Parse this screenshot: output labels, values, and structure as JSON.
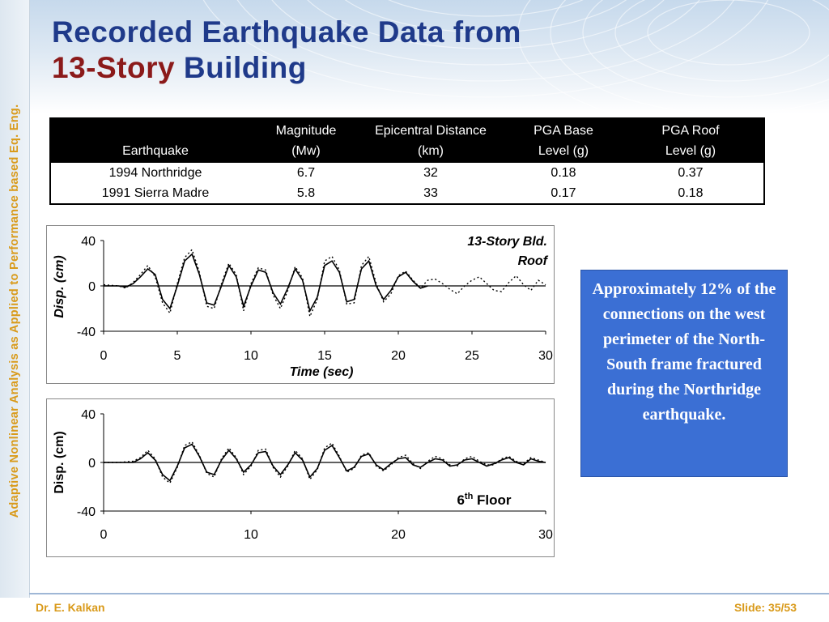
{
  "title": {
    "line1": "Recorded Earthquake Data from",
    "line2_accent": "13-Story",
    "line2_rest": " Building"
  },
  "side_text": "Adaptive Nonlinear Analysis as Applied to Performance based Eq. Eng.",
  "table": {
    "headers": [
      [
        "",
        "Earthquake"
      ],
      [
        "Magnitude",
        "(Mw)"
      ],
      [
        "Epicentral Distance",
        "(km)"
      ],
      [
        "PGA Base",
        "Level (g)"
      ],
      [
        "PGA Roof",
        "Level (g)"
      ]
    ],
    "rows": [
      [
        "1994 Northridge",
        "6.7",
        "32",
        "0.18",
        "0.37"
      ],
      [
        "1991 Sierra Madre",
        "5.8",
        "33",
        "0.17",
        "0.18"
      ]
    ]
  },
  "info_box": "Approximately 12% of the connections on the west perimeter of the North-South frame fractured during the Northridge earthquake.",
  "footer": {
    "author": "Dr. E. Kalkan",
    "slide": "Slide: 35/53"
  },
  "colors": {
    "title": "#1f3a8a",
    "accent": "#8b1a1a",
    "side_text": "#d99a1a",
    "info_box": "#3b6fd4"
  },
  "chart_data": [
    {
      "type": "line",
      "title": "13-Story Bld. Roof",
      "xlabel": "Time (sec)",
      "ylabel": "Disp. (cm)",
      "xlim": [
        0,
        30
      ],
      "ylim": [
        -40,
        40
      ],
      "xticks": [
        0,
        5,
        10,
        15,
        20,
        25,
        30
      ],
      "yticks": [
        40,
        0,
        -40
      ],
      "series": [
        {
          "style": "solid",
          "x": [
            0,
            1,
            1.5,
            2,
            2.5,
            3,
            3.5,
            4,
            4.5,
            5,
            5.5,
            6,
            6.5,
            7,
            7.5,
            8,
            8.5,
            9,
            9.5,
            10,
            10.5,
            11,
            11.5,
            12,
            12.5,
            13,
            13.5,
            14,
            14.5,
            15,
            15.5,
            16,
            16.5,
            17,
            17.5,
            18,
            18.5,
            19,
            19.5,
            20,
            20.5,
            21,
            21.5,
            22
          ],
          "y": [
            0,
            0,
            -1,
            2,
            8,
            15,
            10,
            -12,
            -20,
            0,
            22,
            28,
            10,
            -15,
            -17,
            0,
            18,
            8,
            -18,
            0,
            14,
            12,
            -6,
            -16,
            -2,
            15,
            5,
            -22,
            -10,
            18,
            22,
            12,
            -14,
            -12,
            15,
            22,
            0,
            -12,
            -4,
            8,
            12,
            4,
            -2,
            0
          ]
        },
        {
          "style": "dotted",
          "x": [
            0,
            1,
            1.5,
            2,
            2.5,
            3,
            3.5,
            4,
            4.5,
            5,
            5.5,
            6,
            6.5,
            7,
            7.5,
            8,
            8.5,
            9,
            9.5,
            10,
            10.5,
            11,
            11.5,
            12,
            12.5,
            13,
            13.5,
            14,
            14.5,
            15,
            15.5,
            16,
            16.5,
            17,
            17.5,
            18,
            18.5,
            19,
            19.5,
            20,
            20.5,
            21,
            21.5,
            22,
            22.5,
            23,
            23.5,
            24,
            24.5,
            25,
            25.5,
            26,
            26.5,
            27,
            27.5,
            28,
            28.5,
            29,
            29.5,
            30
          ],
          "y": [
            1,
            0,
            -2,
            3,
            10,
            18,
            8,
            -15,
            -24,
            2,
            25,
            32,
            12,
            -18,
            -20,
            2,
            20,
            10,
            -22,
            2,
            16,
            14,
            -8,
            -20,
            -4,
            17,
            7,
            -27,
            -12,
            22,
            26,
            14,
            -16,
            -15,
            18,
            26,
            2,
            -14,
            -7,
            9,
            13,
            5,
            -2,
            5,
            6,
            2,
            -3,
            -7,
            0,
            5,
            8,
            2,
            -4,
            -5,
            3,
            9,
            1,
            -4,
            5,
            1
          ]
        }
      ]
    },
    {
      "type": "line",
      "title": "6th Floor",
      "title_base": "6",
      "title_sup": "th",
      "title_rest": " Floor",
      "xlabel": "",
      "ylabel": "Disp. (cm)",
      "xlim": [
        0,
        30
      ],
      "ylim": [
        -40,
        40
      ],
      "xticks": [
        0,
        10,
        20,
        30
      ],
      "yticks": [
        40,
        0,
        -40
      ],
      "series": [
        {
          "style": "solid",
          "x": [
            0,
            1,
            2,
            2.5,
            3,
            3.5,
            4,
            4.5,
            5,
            5.5,
            6,
            6.5,
            7,
            7.5,
            8,
            8.5,
            9,
            9.5,
            10,
            10.5,
            11,
            11.5,
            12,
            12.5,
            13,
            13.5,
            14,
            14.5,
            15,
            15.5,
            16,
            16.5,
            17,
            17.5,
            18,
            18.5,
            19,
            19.5,
            20,
            20.5,
            21,
            21.5,
            22,
            22.5,
            23,
            23.5,
            24,
            24.5,
            25,
            25.5,
            26,
            26.5,
            27,
            27.5,
            28,
            28.5,
            29,
            29.5,
            30
          ],
          "y": [
            0,
            0,
            0,
            3,
            8,
            2,
            -10,
            -15,
            -3,
            12,
            15,
            5,
            -8,
            -10,
            2,
            10,
            3,
            -8,
            -2,
            8,
            9,
            -3,
            -10,
            -2,
            8,
            2,
            -12,
            -5,
            10,
            14,
            4,
            -7,
            -4,
            5,
            7,
            -2,
            -6,
            -1,
            3,
            4,
            -2,
            -4,
            0,
            3,
            2,
            -3,
            -2,
            2,
            3,
            0,
            -3,
            -1,
            2,
            4,
            0,
            -2,
            3,
            1,
            0
          ]
        },
        {
          "style": "dotted",
          "x": [
            0,
            1,
            2,
            2.5,
            3,
            3.5,
            4,
            4.5,
            5,
            5.5,
            6,
            6.5,
            7,
            7.5,
            8,
            8.5,
            9,
            9.5,
            10,
            10.5,
            11,
            11.5,
            12,
            12.5,
            13,
            13.5,
            14,
            14.5,
            15,
            15.5,
            16,
            16.5,
            17,
            17.5,
            18,
            18.5,
            19,
            19.5,
            20,
            20.5,
            21,
            21.5,
            22,
            22.5,
            23,
            23.5,
            24,
            24.5,
            25,
            25.5,
            26,
            26.5,
            27,
            27.5,
            28,
            28.5,
            29,
            29.5,
            30
          ],
          "y": [
            0,
            0,
            1,
            4,
            10,
            3,
            -12,
            -17,
            -4,
            14,
            17,
            6,
            -9,
            -12,
            3,
            12,
            4,
            -10,
            -3,
            10,
            11,
            -4,
            -12,
            -3,
            10,
            3,
            -14,
            -6,
            12,
            16,
            5,
            -8,
            -5,
            6,
            8,
            -3,
            -7,
            -2,
            4,
            6,
            -1,
            -5,
            1,
            5,
            3,
            -2,
            -3,
            3,
            5,
            1,
            -2,
            -2,
            3,
            5,
            1,
            -1,
            4,
            2,
            0
          ]
        }
      ]
    }
  ]
}
